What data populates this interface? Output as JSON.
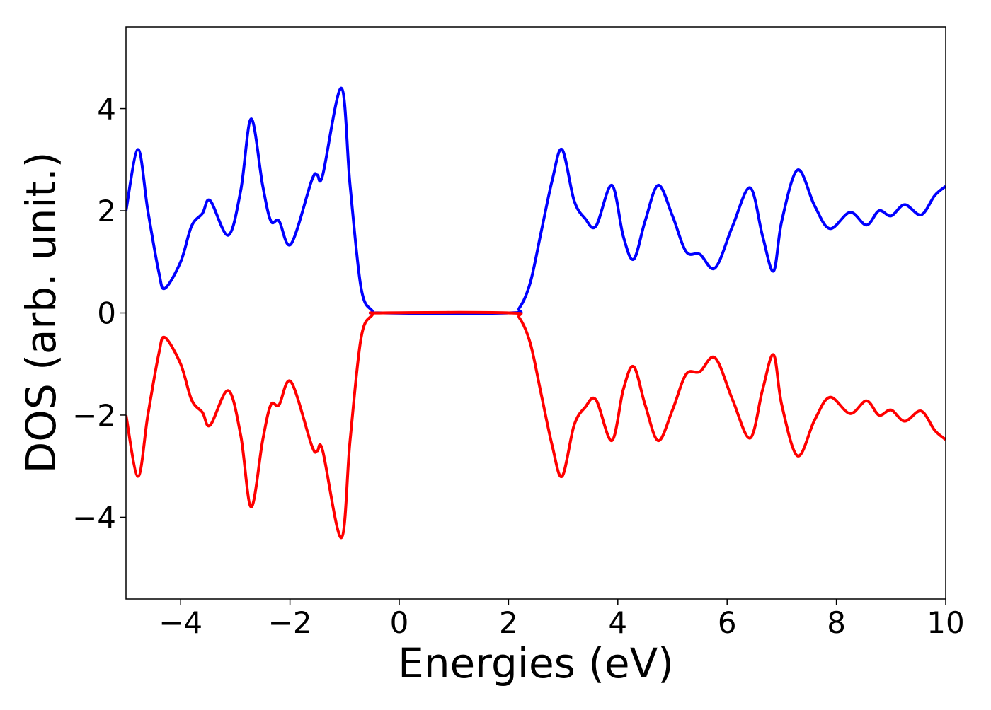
{
  "chart_data": {
    "type": "line",
    "xlabel": "Energies (eV)",
    "ylabel": "DOS (arb. unit.)",
    "x": [
      -5,
      -4.78,
      -4.6,
      -4.4,
      -4.29,
      -4.0,
      -3.8,
      -3.6,
      -3.46,
      -3.13,
      -2.9,
      -2.71,
      -2.5,
      -2.35,
      -2.2,
      -1.98,
      -1.6,
      -1.5,
      -1.4,
      -1.06,
      -0.9,
      -0.7,
      -0.5,
      -0.3,
      2.0,
      2.2,
      2.4,
      2.6,
      2.8,
      2.98,
      3.2,
      3.4,
      3.6,
      3.89,
      4.1,
      4.29,
      4.5,
      4.74,
      5.0,
      5.25,
      5.5,
      5.78,
      6.1,
      6.42,
      6.65,
      6.85,
      7.0,
      7.29,
      7.6,
      7.88,
      8.25,
      8.55,
      8.78,
      9.0,
      9.25,
      9.55,
      9.8,
      10.0
    ],
    "series": [
      {
        "color": "#0000ff",
        "values": [
          2.0,
          3.2,
          2.0,
          0.8,
          0.48,
          1.0,
          1.7,
          1.95,
          2.2,
          1.52,
          2.4,
          3.8,
          2.5,
          1.8,
          1.8,
          1.35,
          2.6,
          2.7,
          2.7,
          4.4,
          2.5,
          0.5,
          0.05,
          0,
          0,
          0.1,
          0.6,
          1.6,
          2.6,
          3.2,
          2.2,
          1.85,
          1.7,
          2.5,
          1.5,
          1.05,
          1.8,
          2.5,
          1.9,
          1.2,
          1.15,
          0.88,
          1.7,
          2.45,
          1.5,
          0.82,
          1.8,
          2.8,
          2.1,
          1.65,
          1.97,
          1.72,
          2.0,
          1.9,
          2.12,
          1.92,
          2.3,
          2.48
        ]
      },
      {
        "color": "#ff0000",
        "values": [
          -2.0,
          -3.2,
          -2.0,
          -0.8,
          -0.48,
          -1.0,
          -1.7,
          -1.95,
          -2.2,
          -1.52,
          -2.4,
          -3.8,
          -2.5,
          -1.8,
          -1.8,
          -1.35,
          -2.6,
          -2.7,
          -2.7,
          -4.4,
          -2.5,
          -0.5,
          -0.05,
          0,
          0,
          -0.1,
          -0.6,
          -1.6,
          -2.6,
          -3.2,
          -2.2,
          -1.85,
          -1.7,
          -2.5,
          -1.5,
          -1.05,
          -1.8,
          -2.5,
          -1.9,
          -1.2,
          -1.15,
          -0.88,
          -1.7,
          -2.45,
          -1.5,
          -0.82,
          -1.8,
          -2.8,
          -2.1,
          -1.65,
          -1.97,
          -1.72,
          -2.0,
          -1.9,
          -2.12,
          -1.92,
          -2.3,
          -2.48
        ]
      }
    ],
    "xlim": [
      -5,
      10
    ],
    "xticks": [
      {
        "value": -4,
        "label": "−4"
      },
      {
        "value": -2,
        "label": "−2"
      },
      0,
      2,
      4,
      6,
      8,
      10
    ],
    "ylim": [
      -5.6,
      5.6
    ],
    "yticks": [
      {
        "value": -4,
        "label": "−4"
      },
      {
        "value": -2,
        "label": "−2"
      },
      0,
      2,
      4
    ],
    "grid": false
  }
}
